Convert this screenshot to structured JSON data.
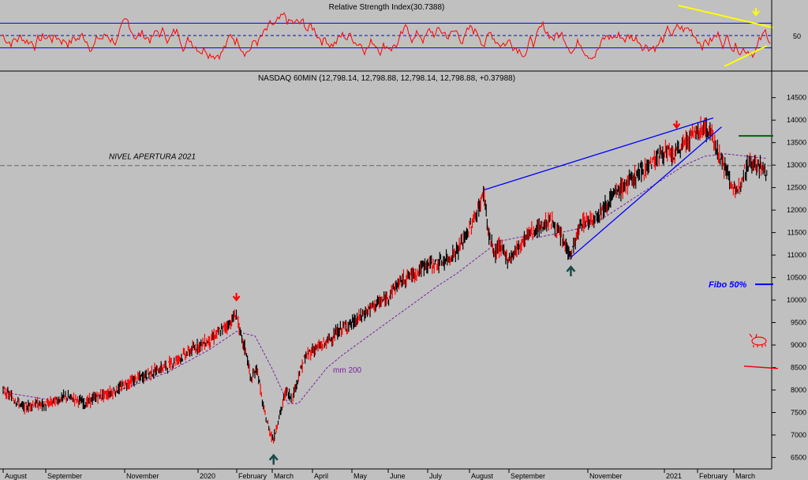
{
  "rsi": {
    "title": "Relative Strength Index(30.7388)",
    "tick_label": "50",
    "ylim": [
      0,
      100
    ],
    "upper_line": 70,
    "lower_line": 30,
    "mid_line": 50,
    "color_line": "#ff0000",
    "color_band": "#0000ff",
    "color_trend": "#ffff00"
  },
  "price": {
    "title": "NASDAQ 60MIN (12,798.14, 12,798.88, 12,798.14, 12,798.88, +0.37988)",
    "ylim": [
      6350,
      14600
    ],
    "yticks": [
      6500,
      7000,
      7500,
      8000,
      8500,
      9000,
      9500,
      10000,
      10500,
      11000,
      11500,
      12000,
      12500,
      13000,
      13500,
      14000,
      14500
    ],
    "ytick_labels": [
      "6500",
      "7000",
      "7500",
      "8000",
      "8500",
      "9000",
      "9500",
      "10000",
      "10500",
      "11000",
      "11500",
      "12000",
      "12500",
      "13000",
      "13500",
      "14000",
      "14500"
    ],
    "nivel_label": "NIVEL APERTURA 2021",
    "nivel_value": 12990,
    "fibo_label": "Fibo 50%",
    "fibo_value": 10350,
    "green_level": 13650,
    "red_level": 8530,
    "ma_label": "mm 200",
    "colors": {
      "ma": "#7a1fa0",
      "trend": "#0000ff",
      "fibo": "#0000ff",
      "green": "#006400",
      "red": "#ff0000",
      "up_arrow": "#1a4a4a",
      "down_arrow": "#ff0000"
    }
  },
  "x_axis": {
    "labels": [
      "August",
      "September",
      "November",
      "2020",
      "February",
      "March",
      "April",
      "May",
      "June",
      "July",
      "August",
      "September",
      "November",
      "2021",
      "February",
      "March"
    ]
  },
  "chart_data": [
    {
      "type": "line",
      "title": "Relative Strength Index(30.7388)",
      "ylim": [
        0,
        100
      ],
      "reference_lines": [
        30,
        50,
        70
      ],
      "series": [
        {
          "name": "Relative Strength Index",
          "last_value": 30.7388
        }
      ]
    },
    {
      "type": "line",
      "title": "NASDAQ 60MIN (12,798.14, 12,798.88, 12,798.14, 12,798.88, +0.37988)",
      "x_labels": [
        "August",
        "September",
        "November",
        "2020",
        "February",
        "March",
        "April",
        "May",
        "June",
        "July",
        "August",
        "September",
        "November",
        "2021",
        "February",
        "March"
      ],
      "ylim": [
        6350,
        14600
      ],
      "series": [
        {
          "name": "NASDAQ 60MIN",
          "points": [
            [
              0,
              7980
            ],
            [
              0.5,
              7820
            ],
            [
              1.0,
              7600
            ],
            [
              1.5,
              7700
            ],
            [
              2.0,
              7650
            ],
            [
              2.5,
              7750
            ],
            [
              3.0,
              7850
            ],
            [
              3.5,
              7800
            ],
            [
              4.0,
              7700
            ],
            [
              4.5,
              7850
            ],
            [
              5.0,
              7900
            ],
            [
              5.5,
              8000
            ],
            [
              6.0,
              8150
            ],
            [
              6.5,
              8250
            ],
            [
              7.0,
              8350
            ],
            [
              7.5,
              8450
            ],
            [
              8.0,
              8550
            ],
            [
              8.5,
              8700
            ],
            [
              9.0,
              8850
            ],
            [
              9.5,
              9000
            ],
            [
              10.0,
              9100
            ],
            [
              10.5,
              9300
            ],
            [
              11.0,
              9500
            ],
            [
              11.3,
              9700
            ],
            [
              11.5,
              9200
            ],
            [
              11.8,
              8800
            ],
            [
              12.0,
              8200
            ],
            [
              12.3,
              8500
            ],
            [
              12.6,
              7600
            ],
            [
              12.9,
              7100
            ],
            [
              13.1,
              6900
            ],
            [
              13.3,
              7300
            ],
            [
              13.5,
              7600
            ],
            [
              13.7,
              8000
            ],
            [
              14.0,
              7800
            ],
            [
              14.3,
              8300
            ],
            [
              14.6,
              8700
            ],
            [
              15.0,
              8900
            ],
            [
              15.5,
              9000
            ],
            [
              16.0,
              9200
            ],
            [
              16.5,
              9400
            ],
            [
              17.0,
              9500
            ],
            [
              17.5,
              9700
            ],
            [
              18.0,
              9900
            ],
            [
              18.5,
              10000
            ],
            [
              19.0,
              10300
            ],
            [
              19.5,
              10500
            ],
            [
              20.0,
              10600
            ],
            [
              20.5,
              10800
            ],
            [
              21.0,
              10800
            ],
            [
              21.5,
              10900
            ],
            [
              22.0,
              11100
            ],
            [
              22.5,
              11500
            ],
            [
              23.0,
              12000
            ],
            [
              23.3,
              12400
            ],
            [
              23.5,
              11500
            ],
            [
              23.8,
              11000
            ],
            [
              24.0,
              11200
            ],
            [
              24.5,
              10900
            ],
            [
              25.0,
              11200
            ],
            [
              25.5,
              11500
            ],
            [
              26.0,
              11600
            ],
            [
              26.5,
              11800
            ],
            [
              27.0,
              11400
            ],
            [
              27.5,
              11000
            ],
            [
              28.0,
              11700
            ],
            [
              28.5,
              11800
            ],
            [
              29.0,
              12000
            ],
            [
              29.5,
              12300
            ],
            [
              30.0,
              12500
            ],
            [
              30.5,
              12700
            ],
            [
              31.0,
              12900
            ],
            [
              31.5,
              13100
            ],
            [
              32.0,
              13300
            ],
            [
              32.5,
              13200
            ],
            [
              33.0,
              13500
            ],
            [
              33.5,
              13700
            ],
            [
              34.0,
              13850
            ],
            [
              34.4,
              13600
            ],
            [
              34.8,
              13100
            ],
            [
              35.2,
              12700
            ],
            [
              35.5,
              12300
            ],
            [
              35.8,
              12800
            ],
            [
              36.2,
              13100
            ],
            [
              36.6,
              13000
            ],
            [
              37.0,
              12800
            ]
          ]
        },
        {
          "name": "mm 200",
          "points": [
            [
              0,
              7950
            ],
            [
              2.0,
              7800
            ],
            [
              4.0,
              7780
            ],
            [
              6.0,
              8050
            ],
            [
              8.0,
              8400
            ],
            [
              10.0,
              8900
            ],
            [
              11.3,
              9300
            ],
            [
              12.2,
              9200
            ],
            [
              13.0,
              8500
            ],
            [
              13.8,
              7700
            ],
            [
              14.3,
              7700
            ],
            [
              15.0,
              8100
            ],
            [
              15.7,
              8500
            ],
            [
              16.5,
              8800
            ],
            [
              18.0,
              9300
            ],
            [
              19.5,
              9800
            ],
            [
              21.0,
              10300
            ],
            [
              22.0,
              10600
            ],
            [
              23.0,
              10950
            ],
            [
              24.0,
              11300
            ],
            [
              25.0,
              11400
            ],
            [
              26.0,
              11400
            ],
            [
              27.0,
              11500
            ],
            [
              28.0,
              11600
            ],
            [
              29.0,
              11800
            ],
            [
              30.0,
              12100
            ],
            [
              31.0,
              12400
            ],
            [
              32.0,
              12700
            ],
            [
              33.0,
              13000
            ],
            [
              34.0,
              13200
            ],
            [
              35.0,
              13250
            ],
            [
              36.0,
              13200
            ],
            [
              37.0,
              13150
            ]
          ]
        }
      ],
      "annotations": [
        "NIVEL APERTURA 2021",
        "Fibo 50%",
        "mm 200"
      ]
    }
  ]
}
